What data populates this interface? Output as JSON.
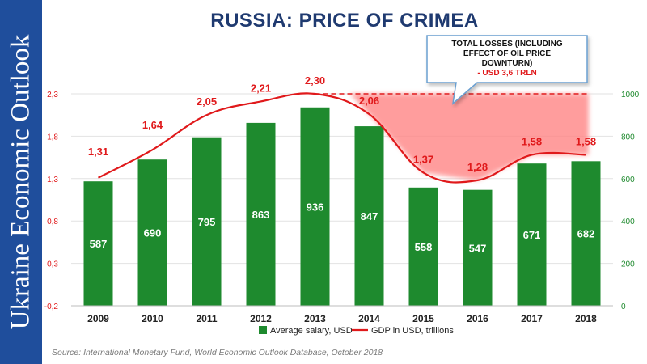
{
  "sidebar": {
    "text": "Ukraine Economic Outlook"
  },
  "colors": {
    "sidebar_bg": "#1f4e9c",
    "title": "#1f3a70",
    "bar": "#1e8a2e",
    "line": "#e0191b",
    "loss_area": "#ff8c8c",
    "callout_border": "#6a9fd0"
  },
  "chart_data": {
    "type": "bar+line",
    "title": "RUSSIA: PRICE OF CRIMEA",
    "categories": [
      "2009",
      "2010",
      "2011",
      "2012",
      "2013",
      "2014",
      "2015",
      "2016",
      "2017",
      "2018"
    ],
    "series": [
      {
        "name": "Average salary, USD",
        "type": "bar",
        "axis": "right",
        "values": [
          587,
          690,
          795,
          863,
          936,
          847,
          558,
          547,
          671,
          682
        ],
        "labels": [
          "587",
          "690",
          "795",
          "863",
          "936",
          "847",
          "558",
          "547",
          "671",
          "682"
        ]
      },
      {
        "name": "GDP in USD, trillions",
        "type": "line",
        "axis": "left",
        "values": [
          1.31,
          1.64,
          2.05,
          2.21,
          2.3,
          2.06,
          1.37,
          1.28,
          1.58,
          1.58
        ],
        "labels": [
          "1,31",
          "1,64",
          "2,05",
          "2,21",
          "2,30",
          "2,06",
          "1,37",
          "1,28",
          "1,58",
          "1,58"
        ]
      }
    ],
    "left_axis": {
      "ylim": [
        -0.2,
        2.3
      ],
      "ticks": [
        -0.2,
        0.3,
        0.8,
        1.3,
        1.8,
        2.3
      ],
      "tick_labels": [
        "-0,2",
        "0,3",
        "0,8",
        "1,3",
        "1,8",
        "2,3"
      ]
    },
    "right_axis": {
      "ylim": [
        0,
        1000
      ],
      "ticks": [
        0,
        200,
        400,
        600,
        800,
        1000
      ],
      "tick_labels": [
        "0",
        "200",
        "400",
        "600",
        "800",
        "1000"
      ]
    },
    "reference_line": {
      "value": 2.3,
      "from_category": "2013",
      "to_category": "2018",
      "style": "dashed"
    },
    "loss_area": {
      "from_category": "2014",
      "to_category": "2018",
      "upper_value": 2.3
    },
    "annotation": {
      "line1": "TOTAL LOSSES (INCLUDING",
      "line2": "EFFECT OF OIL PRICE",
      "line3": "DOWNTURN)",
      "line4": "- USD 3,6 TRLN"
    },
    "legend": {
      "position": "bottom"
    }
  },
  "source": "Source: International Monetary Fund, World Economic Outlook Database, October 2018"
}
